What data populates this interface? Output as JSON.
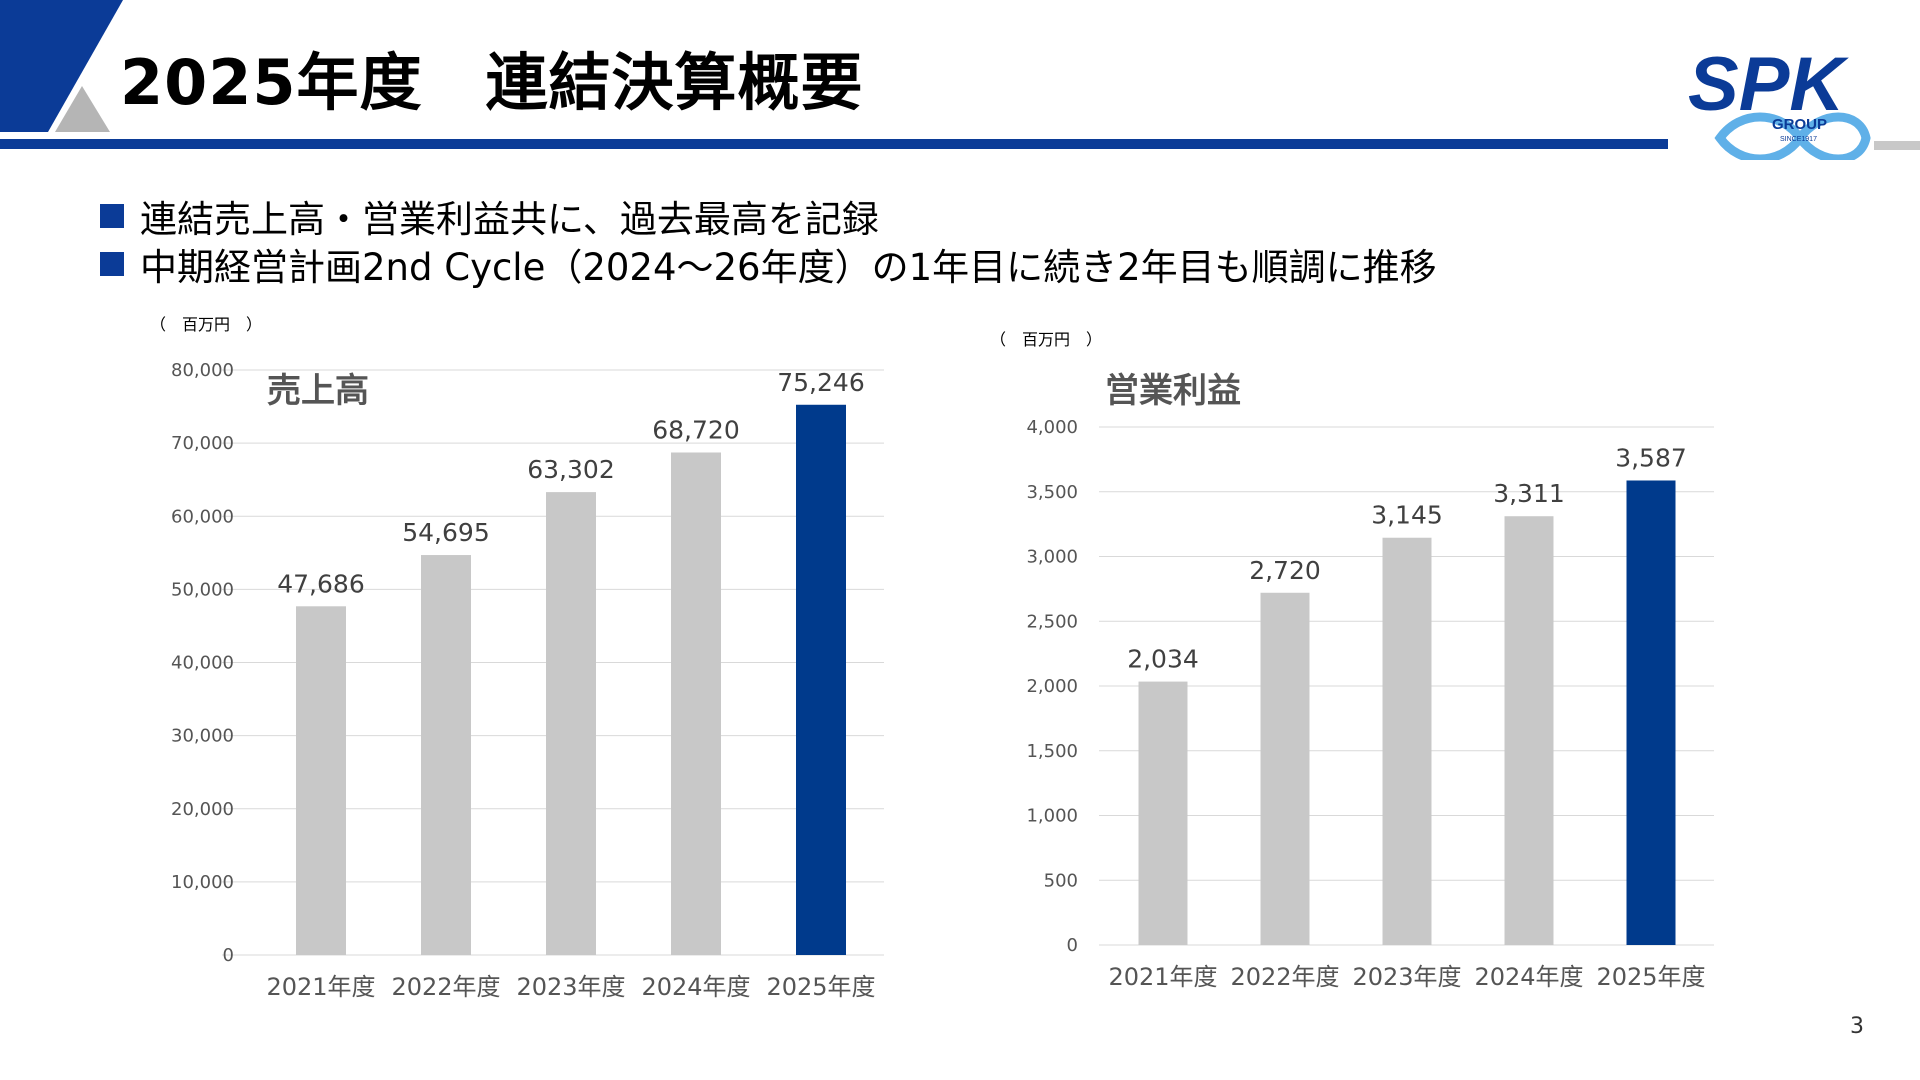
{
  "page": {
    "title": "2025年度　連結決算概要",
    "page_number": "3"
  },
  "logo": {
    "text": "SPK",
    "group": "GROUP",
    "since": "SINCE1917"
  },
  "bullets": [
    "連結売上高・営業利益共に、過去最高を記録",
    "中期経営計画2nd Cycle（2024～26年度）の1年目に続き2年目も順調に推移"
  ],
  "colors": {
    "accent": "#0b3b97",
    "bar_default": "#c8c8c8",
    "bar_highlight": "#003a8c",
    "grid": "#d9d9d9"
  },
  "chart_data": [
    {
      "type": "bar",
      "title": "売上高",
      "unit_label": "（　百万円　）",
      "categories": [
        "2021年度",
        "2022年度",
        "2023年度",
        "2024年度",
        "2025年度"
      ],
      "values": [
        47686,
        54695,
        63302,
        68720,
        75246
      ],
      "value_labels": [
        "47,686",
        "54,695",
        "63,302",
        "68,720",
        "75,246"
      ],
      "highlight_index": 4,
      "ylim": [
        0,
        80000
      ],
      "yticks": [
        0,
        10000,
        20000,
        30000,
        40000,
        50000,
        60000,
        70000,
        80000
      ],
      "ytick_labels": [
        "0",
        "10,000",
        "20,000",
        "30,000",
        "40,000",
        "50,000",
        "60,000",
        "70,000",
        "80,000"
      ],
      "grid": true
    },
    {
      "type": "bar",
      "title": "営業利益",
      "unit_label": "（　百万円　）",
      "categories": [
        "2021年度",
        "2022年度",
        "2023年度",
        "2024年度",
        "2025年度"
      ],
      "values": [
        2034,
        2720,
        3145,
        3311,
        3587
      ],
      "value_labels": [
        "2,034",
        "2,720",
        "3,145",
        "3,311",
        "3,587"
      ],
      "highlight_index": 4,
      "ylim": [
        0,
        4000
      ],
      "yticks": [
        0,
        500,
        1000,
        1500,
        2000,
        2500,
        3000,
        3500,
        4000
      ],
      "ytick_labels": [
        "0",
        "500",
        "1,000",
        "1,500",
        "2,000",
        "2,500",
        "3,000",
        "3,500",
        "4,000"
      ],
      "grid": true
    }
  ]
}
